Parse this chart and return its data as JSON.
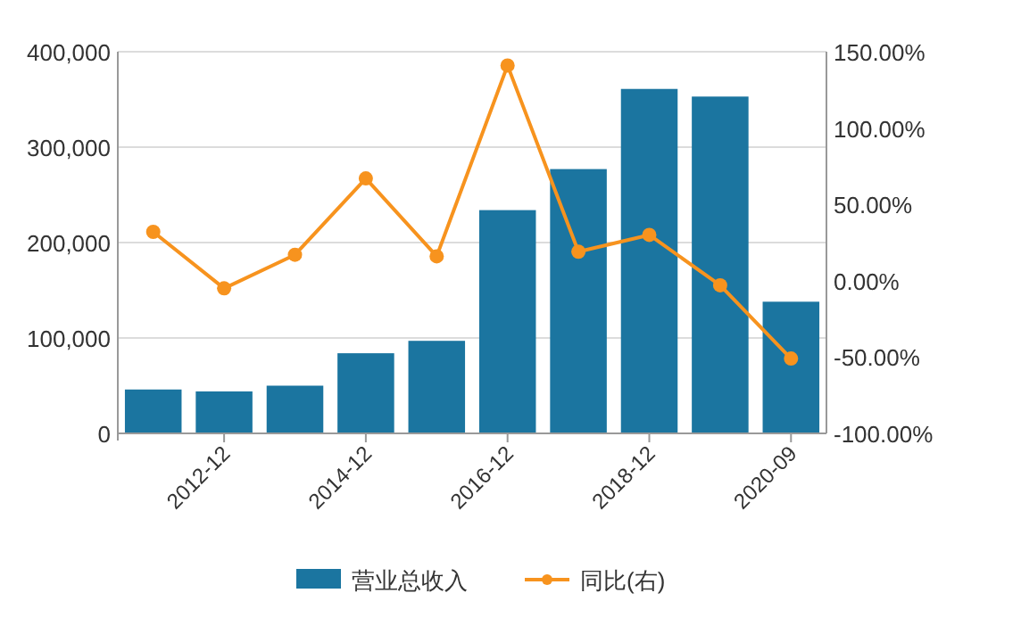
{
  "chart_data": {
    "type": "bar",
    "categories": [
      null,
      "2012-12",
      null,
      "2014-12",
      null,
      "2016-12",
      null,
      "2018-12",
      null,
      "2020-09"
    ],
    "series": [
      {
        "name": "营业总收入",
        "color": "#1b75a0",
        "values": [
          46000,
          44000,
          50000,
          84000,
          97000,
          234000,
          277000,
          361000,
          353000,
          138000
        ]
      },
      {
        "name": "同比(右)",
        "type": "line",
        "axis": "y2",
        "color": "#f7931e",
        "marker": "circle",
        "values": [
          32,
          -5,
          17,
          67,
          16,
          141,
          19,
          30,
          -3,
          -51
        ]
      }
    ],
    "ylim": [
      0,
      400000
    ],
    "yticks": [
      {
        "value": 0,
        "label": "0"
      },
      {
        "value": 100000,
        "label": "100,000"
      },
      {
        "value": 200000,
        "label": "200,000"
      },
      {
        "value": 300000,
        "label": "300,000"
      },
      {
        "value": 400000,
        "label": "400,000"
      }
    ],
    "y2lim": [
      -100,
      150
    ],
    "y2ticks": [
      {
        "value": -100,
        "label": "-100.00%"
      },
      {
        "value": -50,
        "label": "-50.00%"
      },
      {
        "value": 0,
        "label": "0.00%"
      },
      {
        "value": 50,
        "label": "50.00%"
      },
      {
        "value": 100,
        "label": "100.00%"
      },
      {
        "value": 150,
        "label": "150.00%"
      }
    ],
    "grid": "y",
    "legend": "bottom"
  }
}
